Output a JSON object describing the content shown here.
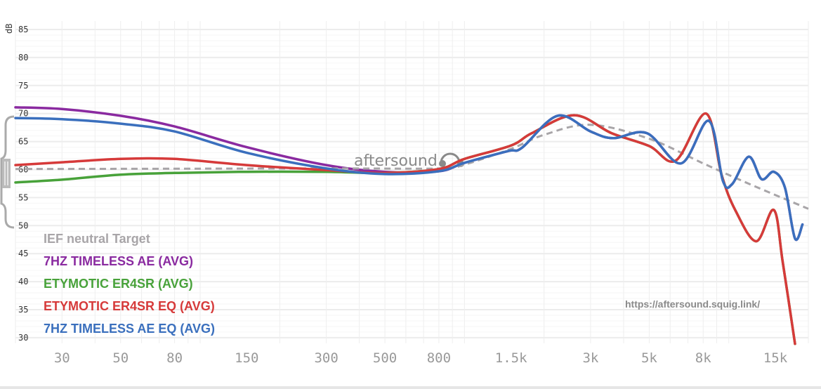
{
  "chart_data": {
    "type": "line",
    "ylabel": "dB",
    "x_scale": "log",
    "xlim": [
      20,
      20000
    ],
    "ylim": [
      29,
      86
    ],
    "grid": true,
    "legend_placement": "bottom-left",
    "y_ticks": [
      "85",
      "80",
      "75",
      "70",
      "65",
      "60",
      "55",
      "50",
      "45",
      "40",
      "35",
      "30"
    ],
    "x_ticks": [
      {
        "label": "30",
        "value": 30
      },
      {
        "label": "50",
        "value": 50
      },
      {
        "label": "80",
        "value": 80
      },
      {
        "label": "150",
        "value": 150
      },
      {
        "label": "300",
        "value": 300
      },
      {
        "label": "500",
        "value": 500
      },
      {
        "label": "800",
        "value": 800
      },
      {
        "label": "1.5k",
        "value": 1500
      },
      {
        "label": "3k",
        "value": 3000
      },
      {
        "label": "5k",
        "value": 5000
      },
      {
        "label": "8k",
        "value": 8000
      },
      {
        "label": "15k",
        "value": 15000
      }
    ],
    "watermark": "aftersound",
    "url_text": "https://aftersound.squig.link/",
    "series": [
      {
        "name": "IEF neutral Target",
        "color": "#a8a5a8",
        "dashed": true,
        "points": [
          [
            20,
            60.1
          ],
          [
            300,
            60.2
          ],
          [
            800,
            60.2
          ],
          [
            1000,
            60.9
          ],
          [
            1500,
            63.7
          ],
          [
            2000,
            66.2
          ],
          [
            3000,
            68
          ],
          [
            5000,
            65.5
          ],
          [
            8000,
            61.1
          ],
          [
            12000,
            57.4
          ],
          [
            20000,
            53
          ]
        ]
      },
      {
        "name": "7HZ TIMELESS AE (AVG)",
        "color": "#8a2aa0",
        "dashed": false,
        "points": [
          [
            20,
            71.1
          ],
          [
            30,
            70.8
          ],
          [
            50,
            69.6
          ],
          [
            80,
            67.7
          ],
          [
            150,
            64
          ],
          [
            300,
            60.8
          ],
          [
            500,
            59.6
          ],
          [
            800,
            59.7
          ],
          [
            1000,
            61.2
          ],
          [
            1460,
            63.3
          ],
          [
            1650,
            63.9
          ],
          [
            2250,
            69.6
          ],
          [
            3000,
            66.8
          ],
          [
            3650,
            65.6
          ],
          [
            4900,
            66.5
          ],
          [
            6600,
            61.1
          ],
          [
            8400,
            68.7
          ],
          [
            9500,
            58
          ],
          [
            10300,
            57.4
          ],
          [
            11900,
            62.3
          ],
          [
            13300,
            58.3
          ],
          [
            14800,
            59.6
          ],
          [
            16300,
            56.8
          ],
          [
            17800,
            47.7
          ],
          [
            19000,
            50.2
          ]
        ]
      },
      {
        "name": "ETYMOTIC ER4SR (AVG)",
        "color": "#48a23a",
        "dashed": false,
        "points": [
          [
            20,
            57.7
          ],
          [
            30,
            58.2
          ],
          [
            50,
            59.1
          ],
          [
            80,
            59.4
          ],
          [
            150,
            59.6
          ],
          [
            300,
            59.6
          ],
          [
            500,
            59.4
          ],
          [
            800,
            60.1
          ],
          [
            1000,
            61.9
          ],
          [
            1500,
            64.3
          ],
          [
            1800,
            66.5
          ],
          [
            2600,
            69.7
          ],
          [
            3600,
            66.5
          ],
          [
            5000,
            64.2
          ],
          [
            6300,
            61.6
          ],
          [
            8200,
            70
          ],
          [
            9400,
            59
          ],
          [
            10600,
            52.7
          ],
          [
            12700,
            47.2
          ],
          [
            14800,
            52.8
          ],
          [
            16000,
            43.5
          ],
          [
            17800,
            28.9
          ]
        ]
      },
      {
        "name": "ETYMOTIC ER4SR EQ (AVG)",
        "color": "#d63a3a",
        "dashed": false,
        "points": [
          [
            20,
            60.8
          ],
          [
            30,
            61.3
          ],
          [
            50,
            61.9
          ],
          [
            80,
            61.9
          ],
          [
            150,
            60.8
          ],
          [
            300,
            59.9
          ],
          [
            500,
            59.4
          ],
          [
            800,
            60.1
          ],
          [
            1000,
            61.9
          ],
          [
            1500,
            64.3
          ],
          [
            1800,
            66.5
          ],
          [
            2600,
            69.7
          ],
          [
            3600,
            66.5
          ],
          [
            5000,
            64.2
          ],
          [
            6300,
            61.6
          ],
          [
            8200,
            70
          ],
          [
            9400,
            59
          ],
          [
            10600,
            52.7
          ],
          [
            12700,
            47.2
          ],
          [
            14800,
            52.8
          ],
          [
            16000,
            43.5
          ],
          [
            17800,
            28.9
          ]
        ]
      },
      {
        "name": "7HZ TIMELESS AE EQ (AVG)",
        "color": "#3a6fbd",
        "dashed": false,
        "points": [
          [
            20,
            69.2
          ],
          [
            30,
            69
          ],
          [
            50,
            68.2
          ],
          [
            80,
            66.8
          ],
          [
            150,
            63
          ],
          [
            300,
            60.2
          ],
          [
            500,
            59.2
          ],
          [
            800,
            59.7
          ],
          [
            1000,
            61.2
          ],
          [
            1460,
            63.3
          ],
          [
            1650,
            63.9
          ],
          [
            2250,
            69.6
          ],
          [
            3000,
            66.8
          ],
          [
            3650,
            65.6
          ],
          [
            4900,
            66.5
          ],
          [
            6600,
            61.1
          ],
          [
            8400,
            68.7
          ],
          [
            9500,
            58
          ],
          [
            10300,
            57.4
          ],
          [
            11900,
            62.3
          ],
          [
            13300,
            58.3
          ],
          [
            14800,
            59.6
          ],
          [
            16300,
            56.8
          ],
          [
            17800,
            47.7
          ],
          [
            19000,
            50.2
          ]
        ]
      }
    ]
  }
}
